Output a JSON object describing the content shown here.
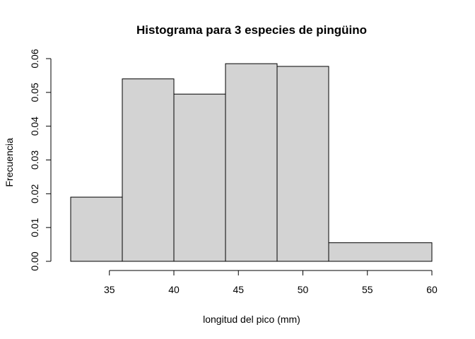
{
  "chart_data": {
    "type": "histogram",
    "title": "Histograma para 3 especies de pingüino",
    "xlabel": "longitud del pico (mm)",
    "ylabel": "Frecuencia",
    "bins": [
      {
        "x0": 32,
        "x1": 36,
        "value": 0.019
      },
      {
        "x0": 36,
        "x1": 40,
        "value": 0.054
      },
      {
        "x0": 40,
        "x1": 44,
        "value": 0.0495
      },
      {
        "x0": 44,
        "x1": 48,
        "value": 0.0585
      },
      {
        "x0": 48,
        "x1": 52,
        "value": 0.0577
      },
      {
        "x0": 52,
        "x1": 60,
        "value": 0.0055
      }
    ],
    "xlim": [
      32,
      60
    ],
    "ylim": [
      0,
      0.06
    ],
    "x_ticks": [
      35,
      40,
      45,
      50,
      55,
      60
    ],
    "x_tick_labels": [
      "35",
      "40",
      "45",
      "50",
      "55",
      "60"
    ],
    "y_ticks": [
      0,
      0.01,
      0.02,
      0.03,
      0.04,
      0.05,
      0.06
    ],
    "y_tick_labels": [
      "0.00",
      "0.01",
      "0.02",
      "0.03",
      "0.04",
      "0.05",
      "0.06"
    ],
    "bar_color": "#d3d3d3",
    "border_color": "#000000",
    "grid": false
  }
}
